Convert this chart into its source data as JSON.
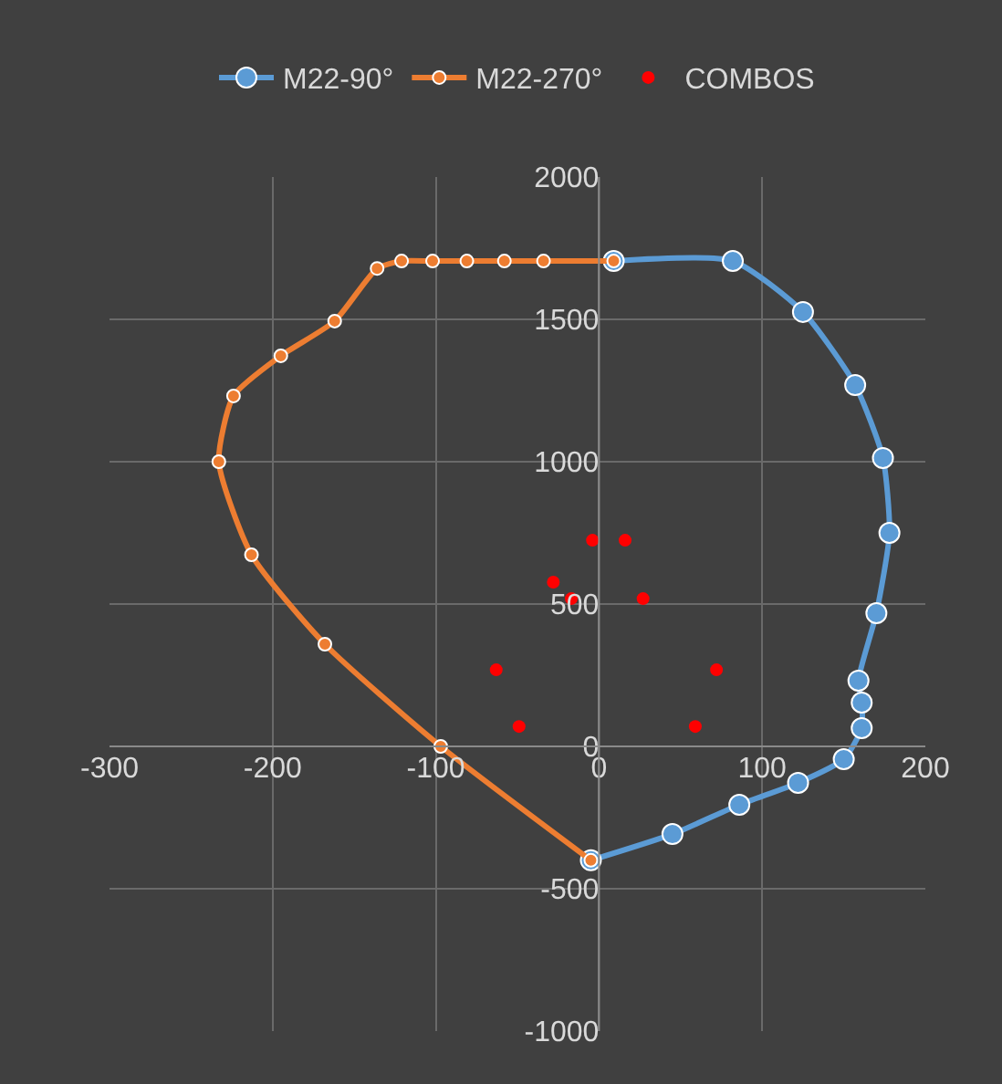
{
  "chart_data": {
    "type": "line",
    "xlim": [
      -300,
      200
    ],
    "ylim": [
      -1000,
      2000
    ],
    "xticks": [
      -300,
      -200,
      -100,
      0,
      100,
      200
    ],
    "yticks": [
      -1000,
      -500,
      0,
      500,
      1000,
      1500,
      2000
    ],
    "grid": true,
    "legend": "top",
    "marker": "circle",
    "line_style": "solid",
    "series": [
      {
        "name": "M22-90°",
        "color": "#5b9bd5",
        "x": [
          -5,
          45,
          86,
          122,
          150,
          161,
          161,
          159,
          170,
          178,
          174,
          157,
          125,
          82,
          9
        ],
        "values": [
          -400,
          -308,
          -205,
          -128,
          -45,
          64,
          154,
          231,
          468,
          750,
          1013,
          1269,
          1526,
          1705,
          1705
        ]
      },
      {
        "name": "M22-270°",
        "color": "#ed7d31",
        "x": [
          -5,
          -97,
          -168,
          -213,
          -233,
          -224,
          -195,
          -162,
          -136,
          -121,
          -102,
          -81,
          -58,
          -34,
          9
        ],
        "values": [
          -400,
          0,
          359,
          673,
          1000,
          1231,
          1372,
          1494,
          1679,
          1705,
          1705,
          1705,
          1705,
          1705,
          1705
        ]
      },
      {
        "name": "COMBOS",
        "type": "scatter",
        "color": "#ff0000",
        "x": [
          -4,
          16,
          -28,
          -17,
          27,
          -63,
          72,
          -49,
          59
        ],
        "values": [
          724,
          724,
          577,
          519,
          519,
          269,
          269,
          70,
          70
        ]
      }
    ]
  }
}
